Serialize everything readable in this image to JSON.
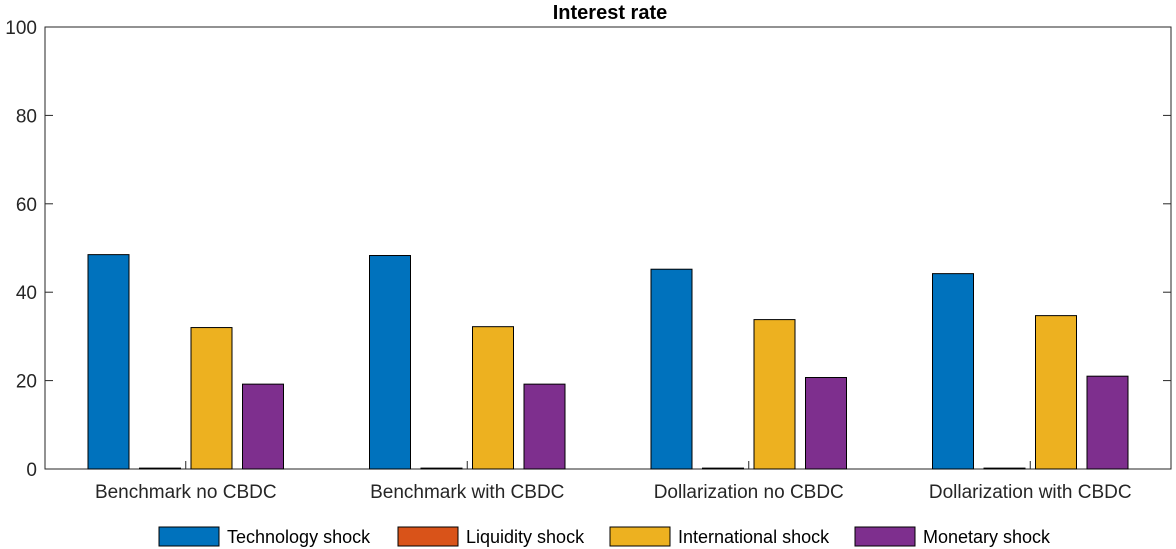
{
  "chart_data": {
    "type": "bar",
    "title": "Interest rate",
    "xlabel": "",
    "ylabel": "",
    "ylim": [
      0,
      100
    ],
    "yticks": [
      "0",
      "20",
      "40",
      "60",
      "80",
      "100"
    ],
    "categories": [
      "Benchmark no CBDC",
      "Benchmark with CBDC",
      "Dollarization no CBDC",
      "Dollarization with CBDC"
    ],
    "series": [
      {
        "name": "Technology shock",
        "color": "#0072BD",
        "values": [
          48.5,
          48.3,
          45.2,
          44.2
        ]
      },
      {
        "name": "Liquidity shock",
        "color": "#D95319",
        "values": [
          0.2,
          0.2,
          0.2,
          0.2
        ]
      },
      {
        "name": "International shock",
        "color": "#EDB120",
        "values": [
          32.0,
          32.2,
          33.8,
          34.7
        ]
      },
      {
        "name": "Monetary shock",
        "color": "#7E2F8E",
        "values": [
          19.2,
          19.2,
          20.7,
          21.0
        ]
      }
    ],
    "grid": false,
    "legend_position": "bottom"
  }
}
